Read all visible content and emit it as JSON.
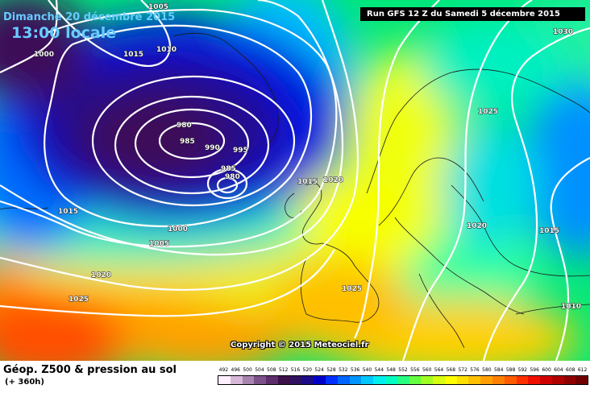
{
  "header": {
    "date": "Dimanche 20 décembre 2015",
    "time": "13:00 locale",
    "run": "Run GFS 12 Z du Samedi 5 décembre 2015"
  },
  "copyright": "Copyright © 2015 Meteociel.fr",
  "footer": {
    "title": "Géop. Z500 & pression au sol",
    "subtitle": "(+ 360h)"
  },
  "pressure_labels": [
    "1005",
    "1000",
    "1015",
    "1010",
    "980",
    "985",
    "990",
    "995",
    "985",
    "980",
    "1015",
    "1020",
    "1015",
    "1005",
    "1000",
    "1020",
    "1025",
    "1025",
    "1030",
    "1025",
    "1020",
    "1015",
    "1010"
  ],
  "scale": {
    "labels": [
      "492",
      "496",
      "500",
      "504",
      "508",
      "512",
      "516",
      "520",
      "524",
      "528",
      "532",
      "536",
      "540",
      "544",
      "548",
      "552",
      "556",
      "560",
      "564",
      "568",
      "572",
      "576",
      "580",
      "584",
      "588",
      "592",
      "596",
      "600",
      "604",
      "608",
      "612"
    ],
    "colors": [
      "#fff0ff",
      "#d8b8d8",
      "#a884b0",
      "#7c5088",
      "#5c2c6c",
      "#3c1048",
      "#301060",
      "#1c0c88",
      "#0000c8",
      "#0030ff",
      "#0064ff",
      "#0096ff",
      "#00c8ff",
      "#00f0f0",
      "#00ffc0",
      "#28ff80",
      "#64ff40",
      "#a0ff20",
      "#d8ff10",
      "#ffff00",
      "#ffe000",
      "#ffc000",
      "#ffa000",
      "#ff8000",
      "#ff5c00",
      "#ff3000",
      "#f01000",
      "#d00000",
      "#b00000",
      "#900000",
      "#700000"
    ]
  }
}
